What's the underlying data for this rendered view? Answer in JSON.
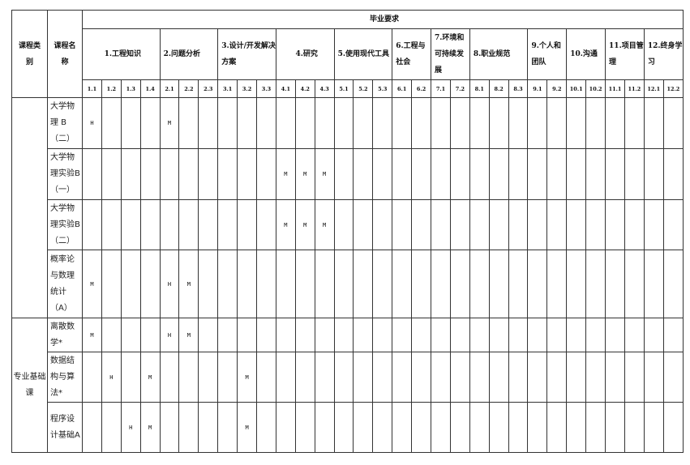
{
  "header": {
    "category": "课程类别",
    "course_name": "课程名称",
    "requirements_title": "毕业要求",
    "groups": [
      {
        "label": "1.工程知识",
        "subs": [
          "1.1",
          "1.2",
          "1.3",
          "1.4"
        ]
      },
      {
        "label": "2.问题分析",
        "subs": [
          "2.1",
          "2.2",
          "2.3"
        ]
      },
      {
        "label": "3.设计/开发解决方案",
        "subs": [
          "3.1",
          "3.2",
          "3.3"
        ]
      },
      {
        "label": "4.研究",
        "subs": [
          "4.1",
          "4.2",
          "4.3"
        ]
      },
      {
        "label": "5.使用现代工具",
        "subs": [
          "5.1",
          "5.2",
          "5.3"
        ]
      },
      {
        "label": "6.工程与社会",
        "subs": [
          "6.1",
          "6.2"
        ]
      },
      {
        "label": "7.环境和可持续发展",
        "subs": [
          "7.1",
          "7.2"
        ]
      },
      {
        "label": "8.职业规范",
        "subs": [
          "8.1",
          "8.2",
          "8.3"
        ]
      },
      {
        "label": "9.个人和团队",
        "subs": [
          "9.1",
          "9.2"
        ]
      },
      {
        "label": "10.沟通",
        "subs": [
          "10.1",
          "10.2"
        ]
      },
      {
        "label": "11.项目管理",
        "subs": [
          "11.1",
          "11.2"
        ]
      },
      {
        "label": "12.终身学习",
        "subs": [
          "12.1",
          "12.2"
        ]
      }
    ]
  },
  "categories": [
    {
      "label": "",
      "rows": 4
    },
    {
      "label": "专业基础课",
      "rows": 3
    }
  ],
  "rows": [
    {
      "name": "大学物理 B（二）",
      "h": 63,
      "marks": {
        "1.1": "H",
        "2.1": "M"
      }
    },
    {
      "name": "大学物理实验B（一）",
      "h": 63,
      "marks": {
        "4.1": "M",
        "4.2": "M",
        "4.3": "M"
      }
    },
    {
      "name": "大学物理实验B（二）",
      "h": 62,
      "marks": {
        "4.1": "M",
        "4.2": "M",
        "4.3": "M"
      }
    },
    {
      "name": "概率论与数理统计（A）",
      "h": 84,
      "marks": {
        "1.1": "M",
        "2.1": "H",
        "2.2": "M"
      }
    },
    {
      "name": "离散数学*",
      "h": 42,
      "marks": {
        "1.1": "M",
        "2.1": "H",
        "2.2": "M"
      }
    },
    {
      "name": "数据结构与算法*",
      "h": 62,
      "marks": {
        "1.2": "H",
        "1.4": "M",
        "3.2": "M"
      }
    },
    {
      "name": "程序设计基础A",
      "h": 62,
      "marks": {
        "1.3": "H",
        "1.4": "M",
        "3.2": "M"
      }
    }
  ]
}
